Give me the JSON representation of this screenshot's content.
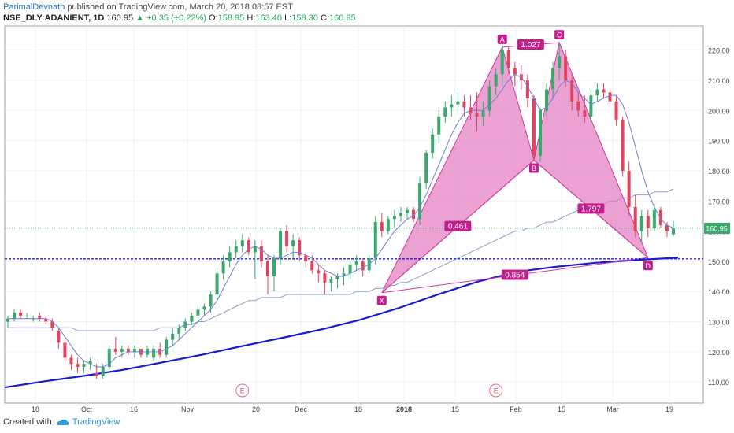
{
  "header": {
    "author": "ParimalDevnath",
    "published_text": "published on TradingView.com, March 20, 2018 08:57 EST",
    "symbol": "NSE_DLY:ADANIENT, 1D",
    "last": "160.95",
    "change": "+0.35 (+0.22%)",
    "o_label": "O:",
    "o_value": "158.95",
    "h_label": "H:",
    "h_value": "163.40",
    "l_label": "L:",
    "l_value": "158.30",
    "c_label": "C:",
    "c_value": "160.95"
  },
  "footer": {
    "created_with": "Created with",
    "brand": "TradingView"
  },
  "colors": {
    "up": "#3aa76d",
    "down": "#e0455f",
    "pattern_fill": "#e27ac0",
    "pattern_line": "#cc3a9a",
    "ma_fast": "#6f7fd0",
    "ma_slow": "#8aa0c8",
    "ma_long": "#1a1ad0",
    "support": "#2020e0",
    "price_line": "#3aa76d"
  },
  "chart_data": {
    "type": "candlestick",
    "ylim": [
      103,
      228
    ],
    "y_ticks": [
      "110.00",
      "120.00",
      "130.00",
      "140.00",
      "150.00",
      "160.00",
      "170.00",
      "180.00",
      "190.00",
      "200.00",
      "210.00",
      "220.00"
    ],
    "x_ticks": [
      "18",
      "Oct",
      "16",
      "Nov",
      "20",
      "Dec",
      "18",
      "2018",
      "15",
      "Feb",
      "15",
      "Mar",
      "19"
    ],
    "last_price_label": "160.95",
    "support_level": 150.8,
    "candles": [
      [
        130,
        132,
        128,
        131
      ],
      [
        131,
        134,
        130,
        133
      ],
      [
        133,
        134,
        131,
        132
      ],
      [
        132,
        133,
        131,
        132
      ],
      [
        131,
        132,
        130,
        131
      ],
      [
        132,
        133,
        130,
        131
      ],
      [
        131,
        132,
        129,
        130
      ],
      [
        130,
        131,
        127,
        128
      ],
      [
        127,
        128,
        121,
        123
      ],
      [
        123,
        124,
        117,
        118
      ],
      [
        118,
        119,
        114,
        116
      ],
      [
        116,
        118,
        113,
        115
      ],
      [
        115,
        117,
        113,
        116
      ],
      [
        116,
        118,
        114,
        117
      ],
      [
        113,
        116,
        111,
        112
      ],
      [
        112,
        116,
        111,
        115
      ],
      [
        115,
        122,
        114,
        121
      ],
      [
        121,
        125,
        119,
        120
      ],
      [
        120,
        122,
        118,
        121
      ],
      [
        121,
        122,
        119,
        120
      ],
      [
        120,
        122,
        118,
        121
      ],
      [
        121,
        121,
        118,
        119
      ],
      [
        119,
        122,
        118,
        121
      ],
      [
        118,
        122,
        117,
        121
      ],
      [
        121,
        123,
        118,
        119
      ],
      [
        119,
        125,
        118,
        124
      ],
      [
        124,
        128,
        122,
        126
      ],
      [
        126,
        129,
        124,
        128
      ],
      [
        128,
        131,
        127,
        130
      ],
      [
        130,
        133,
        129,
        132
      ],
      [
        132,
        135,
        130,
        134
      ],
      [
        134,
        136,
        132,
        135
      ],
      [
        135,
        140,
        133,
        139
      ],
      [
        139,
        148,
        137,
        146
      ],
      [
        146,
        152,
        144,
        150
      ],
      [
        150,
        155,
        148,
        153
      ],
      [
        153,
        157,
        151,
        155
      ],
      [
        155,
        159,
        153,
        157
      ],
      [
        157,
        158,
        152,
        153
      ],
      [
        153,
        157,
        144,
        155
      ],
      [
        155,
        157,
        148,
        150
      ],
      [
        150,
        152,
        139,
        145
      ],
      [
        145,
        152,
        140,
        151
      ],
      [
        151,
        161,
        149,
        160
      ],
      [
        160,
        162,
        153,
        155
      ],
      [
        155,
        159,
        151,
        157
      ],
      [
        157,
        158,
        150,
        152
      ],
      [
        152,
        153,
        148,
        150
      ],
      [
        150,
        152,
        146,
        147
      ],
      [
        147,
        149,
        143,
        146
      ],
      [
        146,
        147,
        139,
        143
      ],
      [
        143,
        145,
        140,
        144
      ],
      [
        144,
        146,
        141,
        145
      ],
      [
        145,
        148,
        142,
        146
      ],
      [
        146,
        150,
        144,
        149
      ],
      [
        149,
        152,
        147,
        150
      ],
      [
        150,
        151,
        145,
        147
      ],
      [
        147,
        152,
        146,
        151
      ],
      [
        151,
        165,
        149,
        163
      ],
      [
        163,
        166,
        158,
        160
      ],
      [
        160,
        165,
        159,
        164
      ],
      [
        164,
        167,
        161,
        165
      ],
      [
        165,
        168,
        163,
        166
      ],
      [
        166,
        168,
        164,
        167
      ],
      [
        167,
        168,
        163,
        164
      ],
      [
        164,
        178,
        162,
        176
      ],
      [
        176,
        187,
        174,
        186
      ],
      [
        186,
        194,
        184,
        192
      ],
      [
        192,
        200,
        189,
        198
      ],
      [
        198,
        203,
        196,
        201
      ],
      [
        201,
        205,
        198,
        202
      ],
      [
        202,
        206,
        199,
        203
      ],
      [
        203,
        205,
        198,
        201
      ],
      [
        201,
        205,
        197,
        199
      ],
      [
        199,
        206,
        193,
        198
      ],
      [
        198,
        203,
        195,
        200
      ],
      [
        200,
        210,
        198,
        208
      ],
      [
        208,
        214,
        205,
        212
      ],
      [
        212,
        222,
        208,
        220
      ],
      [
        220,
        221,
        212,
        214
      ],
      [
        214,
        216,
        208,
        212
      ],
      [
        212,
        215,
        207,
        210
      ],
      [
        210,
        212,
        201,
        204
      ],
      [
        204,
        205,
        183,
        185
      ],
      [
        185,
        201,
        183,
        200
      ],
      [
        200,
        209,
        198,
        207
      ],
      [
        207,
        216,
        204,
        214
      ],
      [
        214,
        222,
        210,
        218
      ],
      [
        218,
        220,
        208,
        210
      ],
      [
        210,
        212,
        200,
        203
      ],
      [
        203,
        206,
        198,
        200
      ],
      [
        200,
        205,
        196,
        198
      ],
      [
        198,
        207,
        196,
        205
      ],
      [
        205,
        209,
        203,
        207
      ],
      [
        207,
        209,
        204,
        206
      ],
      [
        206,
        207,
        202,
        203
      ],
      [
        203,
        205,
        195,
        197
      ],
      [
        197,
        198,
        178,
        180
      ],
      [
        180,
        183,
        165,
        168
      ],
      [
        168,
        172,
        158,
        160
      ],
      [
        160,
        167,
        156,
        165
      ],
      [
        165,
        167,
        158,
        161
      ],
      [
        161,
        169,
        160,
        167
      ],
      [
        167,
        168,
        161,
        162
      ],
      [
        162,
        163,
        158,
        160
      ],
      [
        158.95,
        163.4,
        158.3,
        160.95
      ]
    ],
    "ma_fast": [
      131,
      131,
      131,
      131,
      131,
      131,
      131,
      130,
      128,
      125,
      122,
      119,
      117,
      116,
      115,
      115,
      116,
      118,
      119,
      120,
      120,
      120,
      120,
      120,
      120,
      121,
      122,
      124,
      126,
      128,
      130,
      132,
      134,
      137,
      141,
      145,
      149,
      152,
      154,
      155,
      154,
      152,
      151,
      151,
      152,
      153,
      153,
      152,
      151,
      149,
      147,
      146,
      145,
      145,
      146,
      147,
      148,
      149,
      151,
      154,
      157,
      160,
      162,
      164,
      165,
      168,
      172,
      177,
      182,
      187,
      192,
      196,
      199,
      200,
      200,
      200,
      202,
      204,
      207,
      210,
      212,
      211,
      208,
      204,
      200,
      201,
      204,
      208,
      210,
      209,
      206,
      204,
      202,
      203,
      204,
      205,
      205,
      202,
      196,
      188,
      180,
      173,
      168,
      164,
      162,
      161
    ],
    "ma_slow": [
      128,
      128,
      128,
      128,
      128,
      128,
      128,
      128,
      128,
      128,
      128,
      127,
      127,
      127,
      127,
      127,
      127,
      127,
      127,
      127,
      127,
      127,
      127,
      127,
      128,
      128,
      128,
      128,
      129,
      129,
      130,
      130,
      131,
      132,
      133,
      134,
      135,
      136,
      137,
      137,
      138,
      138,
      138,
      138,
      139,
      139,
      139,
      139,
      139,
      139,
      139,
      139,
      139,
      139,
      139,
      140,
      140,
      140,
      141,
      141,
      142,
      142,
      143,
      143,
      144,
      145,
      146,
      147,
      148,
      149,
      150,
      151,
      152,
      153,
      154,
      155,
      156,
      157,
      158,
      159,
      160,
      160,
      161,
      161,
      162,
      163,
      163,
      164,
      165,
      166,
      167,
      167,
      168,
      168,
      169,
      170,
      170,
      171,
      171,
      172,
      172,
      172,
      173,
      173,
      173,
      174
    ],
    "ma_long": [
      [
        0,
        108.2
      ],
      [
        50,
        110.2
      ],
      [
        100,
        112.0
      ],
      [
        150,
        114.0
      ],
      [
        200,
        116.5
      ],
      [
        250,
        119.0
      ],
      [
        300,
        121.8
      ],
      [
        350,
        124.5
      ],
      [
        400,
        127.3
      ],
      [
        450,
        130.5
      ],
      [
        500,
        134.5
      ],
      [
        550,
        139.0
      ],
      [
        600,
        143.2
      ],
      [
        650,
        146.5
      ],
      [
        700,
        148.2
      ],
      [
        750,
        149.5
      ],
      [
        800,
        150.4
      ],
      [
        855,
        151.2
      ]
    ],
    "ma_long_x_scale": "index_over_105",
    "harmonic": {
      "points": [
        {
          "label": "X",
          "index": 59,
          "value": 139.6
        },
        {
          "label": "A",
          "index": 78,
          "value": 221.0
        },
        {
          "label": "B",
          "index": 83,
          "value": 183.5
        },
        {
          "label": "C",
          "index": 87,
          "value": 222.5
        },
        {
          "label": "D",
          "index": 101,
          "value": 151.2
        }
      ],
      "ratios": [
        {
          "label": "0.461",
          "between": "X-B"
        },
        {
          "label": "1.027",
          "between": "A-C"
        },
        {
          "label": "1.797",
          "between": "B-D"
        },
        {
          "label": "0.854",
          "between": "X-D"
        }
      ]
    },
    "events": [
      {
        "label": "E",
        "index": 37
      },
      {
        "label": "E",
        "index": 77
      }
    ]
  }
}
